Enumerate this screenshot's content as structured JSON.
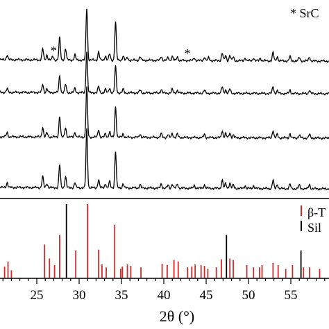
{
  "chart_data": [
    {
      "type": "line",
      "title": "",
      "xlabel": "",
      "ylabel": "",
      "xlim": [
        20.5,
        59
      ],
      "grid": false,
      "legend": {
        "placement": "top-right",
        "entries": [
          "* SrC"
        ]
      },
      "marker_label": "*",
      "marker_positions": [
        27.0,
        42.8
      ],
      "series": [
        {
          "peaks": [
            [
              21.5,
              0.07
            ],
            [
              25.7,
              0.16
            ],
            [
              26.2,
              0.07
            ],
            [
              26.9,
              0.05
            ],
            [
              27.7,
              0.32
            ],
            [
              28.4,
              0.16
            ],
            [
              29.5,
              0.07
            ],
            [
              30.9,
              0.75
            ],
            [
              32.3,
              0.12
            ],
            [
              33.1,
              0.06
            ],
            [
              33.6,
              0.09
            ],
            [
              34.3,
              0.55
            ],
            [
              35.2,
              0.06
            ],
            [
              35.7,
              0.04
            ],
            [
              37.2,
              0.05
            ],
            [
              39.7,
              0.06
            ],
            [
              40.5,
              0.04
            ],
            [
              41.0,
              0.06
            ],
            [
              41.6,
              0.05
            ],
            [
              43.6,
              0.04
            ],
            [
              44.8,
              0.05
            ],
            [
              45.3,
              0.04
            ],
            [
              46.9,
              0.11
            ],
            [
              47.3,
              0.07
            ],
            [
              47.8,
              0.08
            ],
            [
              48.2,
              0.05
            ],
            [
              49.6,
              0.04
            ],
            [
              50.6,
              0.04
            ],
            [
              51.4,
              0.04
            ],
            [
              52.9,
              0.12
            ],
            [
              53.4,
              0.06
            ],
            [
              54.9,
              0.06
            ],
            [
              56.0,
              0.05
            ],
            [
              57.2,
              0.06
            ]
          ]
        },
        {
          "peaks": [
            [
              21.5,
              0.05
            ],
            [
              25.7,
              0.12
            ],
            [
              26.2,
              0.05
            ],
            [
              27.7,
              0.24
            ],
            [
              28.4,
              0.12
            ],
            [
              29.5,
              0.06
            ],
            [
              30.9,
              0.6
            ],
            [
              32.3,
              0.09
            ],
            [
              33.1,
              0.05
            ],
            [
              33.6,
              0.07
            ],
            [
              34.3,
              0.38
            ],
            [
              35.2,
              0.05
            ],
            [
              37.2,
              0.04
            ],
            [
              39.7,
              0.05
            ],
            [
              41.0,
              0.05
            ],
            [
              41.6,
              0.04
            ],
            [
              44.8,
              0.04
            ],
            [
              46.9,
              0.09
            ],
            [
              47.3,
              0.05
            ],
            [
              47.8,
              0.06
            ],
            [
              52.9,
              0.1
            ],
            [
              53.4,
              0.04
            ],
            [
              54.9,
              0.05
            ],
            [
              57.2,
              0.05
            ]
          ]
        },
        {
          "peaks": [
            [
              21.5,
              0.06
            ],
            [
              25.7,
              0.14
            ],
            [
              26.2,
              0.06
            ],
            [
              27.7,
              0.3
            ],
            [
              28.4,
              0.14
            ],
            [
              29.5,
              0.07
            ],
            [
              30.9,
              0.72
            ],
            [
              32.3,
              0.11
            ],
            [
              33.1,
              0.05
            ],
            [
              33.6,
              0.08
            ],
            [
              34.3,
              0.44
            ],
            [
              35.2,
              0.05
            ],
            [
              37.2,
              0.05
            ],
            [
              39.7,
              0.05
            ],
            [
              40.5,
              0.04
            ],
            [
              41.0,
              0.06
            ],
            [
              41.6,
              0.05
            ],
            [
              44.8,
              0.05
            ],
            [
              46.9,
              0.1
            ],
            [
              47.3,
              0.06
            ],
            [
              47.8,
              0.07
            ],
            [
              48.2,
              0.04
            ],
            [
              52.9,
              0.11
            ],
            [
              53.4,
              0.05
            ],
            [
              54.9,
              0.06
            ],
            [
              56.0,
              0.04
            ],
            [
              57.2,
              0.05
            ]
          ]
        },
        {
          "peaks": [
            [
              21.5,
              0.07
            ],
            [
              25.7,
              0.16
            ],
            [
              26.2,
              0.06
            ],
            [
              27.7,
              0.33
            ],
            [
              28.4,
              0.16
            ],
            [
              29.5,
              0.07
            ],
            [
              30.9,
              0.85
            ],
            [
              32.3,
              0.12
            ],
            [
              33.1,
              0.06
            ],
            [
              33.6,
              0.09
            ],
            [
              34.3,
              0.52
            ],
            [
              35.2,
              0.06
            ],
            [
              37.2,
              0.05
            ],
            [
              39.7,
              0.06
            ],
            [
              40.5,
              0.04
            ],
            [
              41.0,
              0.06
            ],
            [
              41.6,
              0.06
            ],
            [
              43.6,
              0.04
            ],
            [
              44.8,
              0.05
            ],
            [
              46.9,
              0.12
            ],
            [
              47.3,
              0.07
            ],
            [
              47.8,
              0.08
            ],
            [
              48.2,
              0.05
            ],
            [
              49.6,
              0.04
            ],
            [
              50.6,
              0.04
            ],
            [
              52.9,
              0.12
            ],
            [
              53.4,
              0.06
            ],
            [
              54.9,
              0.06
            ],
            [
              56.0,
              0.05
            ],
            [
              57.2,
              0.06
            ]
          ]
        }
      ]
    },
    {
      "type": "bar",
      "xlabel": "2θ (°)",
      "ylabel": "",
      "xlim": [
        20.5,
        59
      ],
      "x_ticks": [
        25,
        30,
        35,
        40,
        45,
        50,
        55
      ],
      "legend": {
        "placement": "top-right",
        "entries": [
          "β-T",
          "Sil"
        ]
      },
      "series": [
        {
          "name": "β-T",
          "color": "#d62728",
          "sticks": [
            [
              21.2,
              0.15
            ],
            [
              21.6,
              0.22
            ],
            [
              22.0,
              0.1
            ],
            [
              25.9,
              0.45
            ],
            [
              26.5,
              0.26
            ],
            [
              27.1,
              0.17
            ],
            [
              27.7,
              0.58
            ],
            [
              29.6,
              0.37
            ],
            [
              31.0,
              1.0
            ],
            [
              32.3,
              0.38
            ],
            [
              32.7,
              0.18
            ],
            [
              33.2,
              0.14
            ],
            [
              34.2,
              0.72
            ],
            [
              34.9,
              0.12
            ],
            [
              35.1,
              0.15
            ],
            [
              35.7,
              0.18
            ],
            [
              36.1,
              0.16
            ],
            [
              37.3,
              0.14
            ],
            [
              39.8,
              0.19
            ],
            [
              40.4,
              0.17
            ],
            [
              41.2,
              0.24
            ],
            [
              41.7,
              0.22
            ],
            [
              42.8,
              0.14
            ],
            [
              43.3,
              0.15
            ],
            [
              43.7,
              0.18
            ],
            [
              44.4,
              0.17
            ],
            [
              44.8,
              0.16
            ],
            [
              45.2,
              0.12
            ],
            [
              46.2,
              0.14
            ],
            [
              46.8,
              0.25
            ],
            [
              47.8,
              0.26
            ],
            [
              48.2,
              0.24
            ],
            [
              49.8,
              0.17
            ],
            [
              50.6,
              0.14
            ],
            [
              51.3,
              0.14
            ],
            [
              51.6,
              0.17
            ],
            [
              52.9,
              0.2
            ],
            [
              53.5,
              0.17
            ],
            [
              54.4,
              0.12
            ],
            [
              55.2,
              0.17
            ],
            [
              56.5,
              0.14
            ],
            [
              57.2,
              0.14
            ],
            [
              58.4,
              0.12
            ]
          ]
        },
        {
          "name": "Sil",
          "color": "#000000",
          "sticks": [
            [
              28.5,
              1.0
            ],
            [
              47.4,
              0.58
            ],
            [
              56.2,
              0.37
            ]
          ]
        }
      ]
    }
  ],
  "header": {
    "legend_label": "* SrC",
    "star_label": "*"
  },
  "reference": {
    "legend_beta": "β-T",
    "legend_sil": "Sil"
  },
  "x_axis": {
    "ticks": [
      "25",
      "30",
      "35",
      "40",
      "45",
      "50",
      "55"
    ],
    "title": "2θ (°)"
  }
}
